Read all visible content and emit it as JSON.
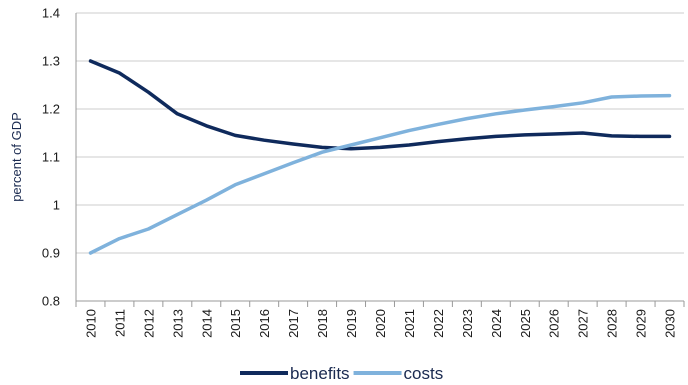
{
  "chart_data": {
    "type": "line",
    "title": "",
    "xlabel": "",
    "ylabel": "percent of GDP",
    "ylim": [
      0.8,
      1.4
    ],
    "yticks": [
      "0.8",
      "0.9",
      "1",
      "1.1",
      "1.2",
      "1.3",
      "1.4"
    ],
    "x": [
      "2010",
      "2011",
      "2012",
      "2013",
      "2014",
      "2015",
      "2016",
      "2017",
      "2018",
      "2019",
      "2020",
      "2021",
      "2022",
      "2023",
      "2024",
      "2025",
      "2026",
      "2027",
      "2028",
      "2029",
      "2030"
    ],
    "grid": "horizontal",
    "legend": "bottom",
    "series": [
      {
        "name": "benefits",
        "color": "#0f2a5c",
        "values": [
          1.3,
          1.275,
          1.235,
          1.19,
          1.165,
          1.145,
          1.135,
          1.127,
          1.12,
          1.117,
          1.12,
          1.125,
          1.132,
          1.138,
          1.143,
          1.146,
          1.148,
          1.15,
          1.144,
          1.143,
          1.143
        ]
      },
      {
        "name": "costs",
        "color": "#7fb2dc",
        "values": [
          0.9,
          0.93,
          0.95,
          0.98,
          1.01,
          1.042,
          1.065,
          1.088,
          1.11,
          1.125,
          1.14,
          1.155,
          1.168,
          1.18,
          1.19,
          1.198,
          1.205,
          1.213,
          1.225,
          1.227,
          1.228
        ]
      }
    ]
  }
}
